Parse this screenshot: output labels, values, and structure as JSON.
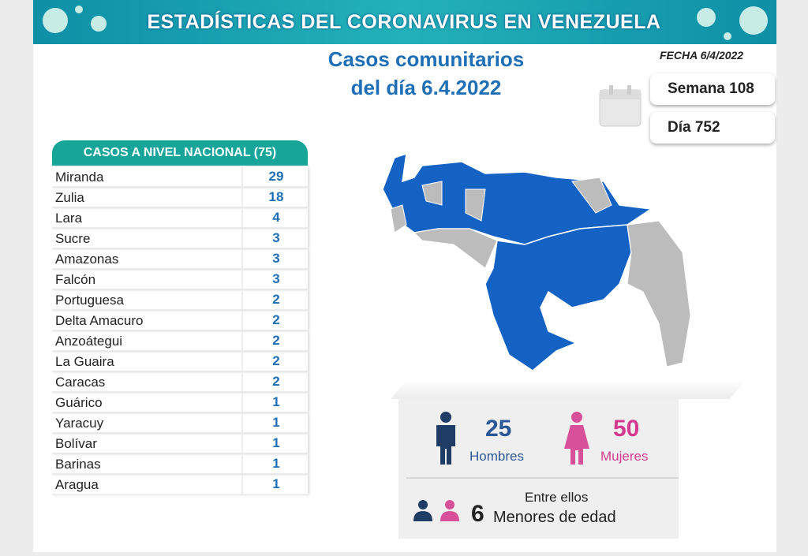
{
  "header": {
    "title": "ESTADÍSTICAS DEL CORONAVIRUS EN VENEZUELA"
  },
  "subtitle": {
    "line1": "Casos comunitarios",
    "line2": "del día 6.4.2022"
  },
  "date": "FECHA 6/4/2022",
  "week": "Semana 108",
  "day": "Día 752",
  "table": {
    "header": "CASOS A NIVEL NACIONAL (75)",
    "rows": [
      [
        "Miranda",
        "29"
      ],
      [
        "Zulia",
        "18"
      ],
      [
        "Lara",
        "4"
      ],
      [
        "Sucre",
        "3"
      ],
      [
        "Amazonas",
        "3"
      ],
      [
        "Falcón",
        "3"
      ],
      [
        "Portuguesa",
        "2"
      ],
      [
        "Delta Amacuro",
        "2"
      ],
      [
        "Anzoátegui",
        "2"
      ],
      [
        "La Guaira",
        "2"
      ],
      [
        "Caracas",
        "2"
      ],
      [
        "Guárico",
        "1"
      ],
      [
        "Yaracuy",
        "1"
      ],
      [
        "Bolívar",
        "1"
      ],
      [
        "Barinas",
        "1"
      ],
      [
        "Aragua",
        "1"
      ]
    ]
  },
  "stats": {
    "men": {
      "value": "25",
      "label": "Hombres"
    },
    "women": {
      "value": "50",
      "label": "Mujeres"
    },
    "minors": {
      "intro": "Entre ellos",
      "value": "6",
      "label": "Menores de edad"
    }
  }
}
